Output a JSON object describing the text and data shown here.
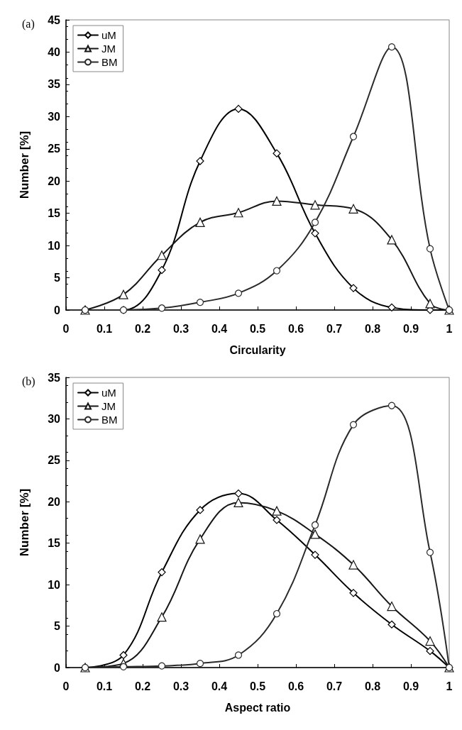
{
  "chart_data": [
    {
      "type": "line",
      "title": "(a)",
      "xlabel": "Circularity",
      "ylabel": "Number [%]",
      "x": [
        0.05,
        0.15,
        0.25,
        0.35,
        0.45,
        0.55,
        0.65,
        0.75,
        0.85,
        0.95,
        1.0
      ],
      "series": [
        {
          "name": "uM",
          "color": "#000000",
          "marker": "diamond",
          "values": [
            0,
            0,
            6.2,
            23.1,
            31.2,
            24.3,
            11.9,
            3.4,
            0.4,
            0,
            0
          ]
        },
        {
          "name": "JM",
          "color": "#161616",
          "marker": "triangle",
          "values": [
            0,
            2.4,
            8.5,
            13.6,
            15.1,
            16.9,
            16.3,
            15.7,
            10.9,
            1.0,
            0
          ]
        },
        {
          "name": "BM",
          "color": "#2a2a2a",
          "marker": "circle",
          "values": [
            0,
            0,
            0.3,
            1.2,
            2.6,
            6.1,
            13.6,
            26.9,
            40.8,
            9.5,
            0
          ]
        }
      ],
      "xlim": [
        0,
        1
      ],
      "xticks": [
        0,
        0.1,
        0.2,
        0.3,
        0.4,
        0.5,
        0.6,
        0.7,
        0.8,
        0.9,
        1
      ],
      "ylim": [
        0,
        45
      ],
      "yticks": [
        0,
        5,
        10,
        15,
        20,
        25,
        30,
        35,
        40,
        45
      ],
      "grid": false,
      "legend": "top left",
      "line_style": "solid"
    },
    {
      "type": "line",
      "title": "(b)",
      "xlabel": "Aspect ratio",
      "ylabel": "Number [%]",
      "x": [
        0.05,
        0.15,
        0.25,
        0.35,
        0.45,
        0.55,
        0.65,
        0.75,
        0.85,
        0.95,
        1.0
      ],
      "series": [
        {
          "name": "uM",
          "color": "#000000",
          "marker": "diamond",
          "values": [
            0,
            1.5,
            11.5,
            19,
            21,
            17.8,
            13.6,
            9,
            5.2,
            2,
            0
          ]
        },
        {
          "name": "JM",
          "color": "#161616",
          "marker": "triangle",
          "values": [
            0,
            0.5,
            6.1,
            15.5,
            19.9,
            18.9,
            16.1,
            12.4,
            7.4,
            3.2,
            0
          ]
        },
        {
          "name": "BM",
          "color": "#2a2a2a",
          "marker": "circle",
          "values": [
            0,
            0.1,
            0.2,
            0.5,
            1.5,
            6.5,
            17.2,
            29.3,
            31.6,
            13.9,
            0
          ]
        }
      ],
      "xlim": [
        0,
        1
      ],
      "xticks": [
        0,
        0.1,
        0.2,
        0.3,
        0.4,
        0.5,
        0.6,
        0.7,
        0.8,
        0.9,
        1
      ],
      "ylim": [
        0,
        35
      ],
      "yticks": [
        0,
        5,
        10,
        15,
        20,
        25,
        30,
        35
      ],
      "grid": false,
      "legend": "top left",
      "line_style": "solid"
    }
  ]
}
